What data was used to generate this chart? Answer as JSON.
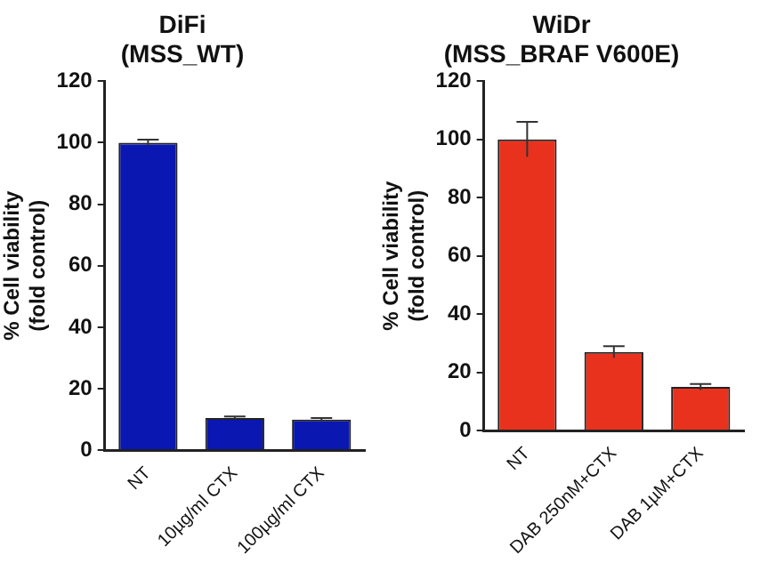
{
  "chart_data": [
    {
      "type": "bar",
      "title": "DiFi\n(MSS_WT)",
      "ylabel": "% Cell viability\n(fold control)",
      "categories": [
        "NT",
        "10µg/ml CTX",
        "100µg/ml CTX"
      ],
      "values": [
        100,
        10.5,
        10
      ],
      "errors": [
        1,
        0.5,
        0.5
      ],
      "color": "#0a17b0",
      "ylim": [
        0,
        120
      ],
      "yticks": [
        0,
        20,
        40,
        60,
        80,
        100,
        120
      ],
      "grid": false,
      "legend": false
    },
    {
      "type": "bar",
      "title": "WiDr\n(MSS_BRAF V600E)",
      "ylabel": "% Cell viability\n(fold control)",
      "categories": [
        "NT",
        "DAB 250nM+CTX",
        "DAB 1µM+CTX"
      ],
      "values": [
        100,
        27,
        15
      ],
      "errors": [
        6,
        2,
        1
      ],
      "color": "#e8321e",
      "ylim": [
        0,
        120
      ],
      "yticks": [
        0,
        20,
        40,
        60,
        80,
        100,
        120
      ],
      "grid": false,
      "legend": false
    }
  ]
}
